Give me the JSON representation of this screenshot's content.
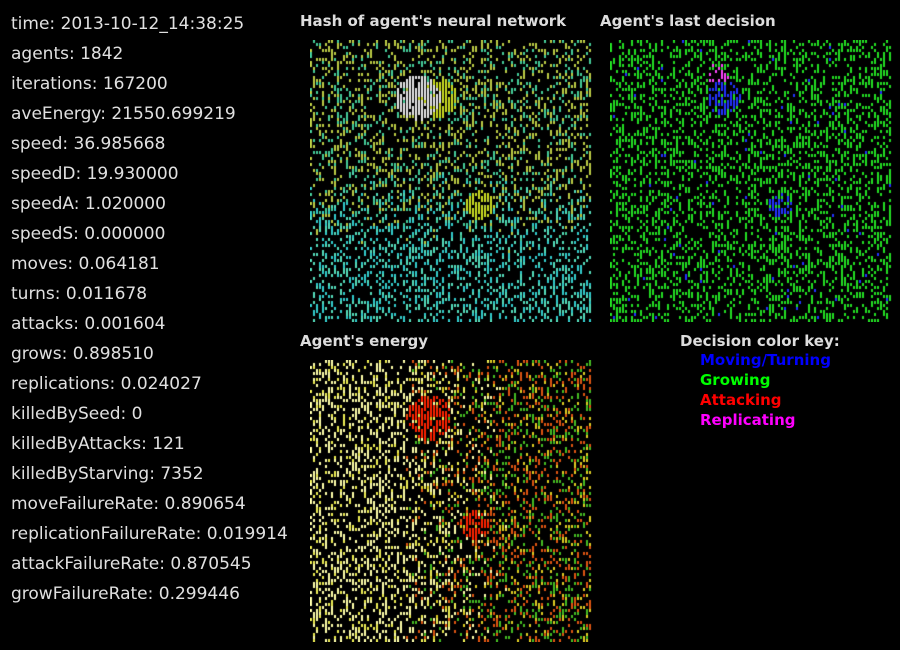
{
  "stats": [
    {
      "label": "time",
      "value": "2013-10-12_14:38:25"
    },
    {
      "label": "agents",
      "value": "1842"
    },
    {
      "label": "iterations",
      "value": "167200"
    },
    {
      "label": "aveEnergy",
      "value": "21550.699219"
    },
    {
      "label": "speed",
      "value": "36.985668"
    },
    {
      "label": "speedD",
      "value": "19.930000"
    },
    {
      "label": "speedA",
      "value": "1.020000"
    },
    {
      "label": "speedS",
      "value": "0.000000"
    },
    {
      "label": "moves",
      "value": "0.064181"
    },
    {
      "label": "turns",
      "value": "0.011678"
    },
    {
      "label": "attacks",
      "value": "0.001604"
    },
    {
      "label": "grows",
      "value": "0.898510"
    },
    {
      "label": "replications",
      "value": "0.024027"
    },
    {
      "label": "killedBySeed",
      "value": "0"
    },
    {
      "label": "killedByAttacks",
      "value": "121"
    },
    {
      "label": "killedByStarving",
      "value": "7352"
    },
    {
      "label": "moveFailureRate",
      "value": "0.890654"
    },
    {
      "label": "replicationFailureRate",
      "value": "0.019914"
    },
    {
      "label": "attackFailureRate",
      "value": "0.870545"
    },
    {
      "label": "growFailureRate",
      "value": "0.299446"
    }
  ],
  "panels": {
    "hash": {
      "title": "Hash of agent's neural network"
    },
    "decision": {
      "title": "Agent's last decision"
    },
    "energy": {
      "title": "Agent's energy"
    }
  },
  "key": {
    "title": "Decision color key:",
    "items": [
      {
        "label": "Moving/Turning",
        "color": "#0000ff"
      },
      {
        "label": "Growing",
        "color": "#00ff00"
      },
      {
        "label": "Attacking",
        "color": "#ff0000"
      },
      {
        "label": "Replicating",
        "color": "#ff00ff"
      }
    ]
  }
}
